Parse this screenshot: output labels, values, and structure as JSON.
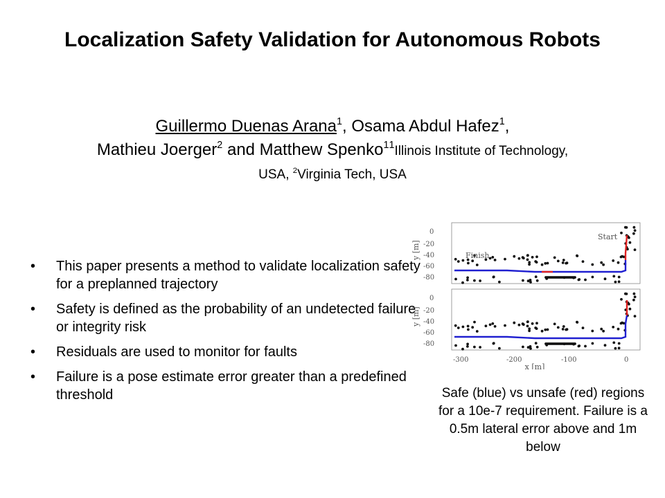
{
  "title": "Localization Safety Validation for Autonomous Robots",
  "authors": {
    "line1": {
      "author1": "Guillermo Duenas Arana",
      "author1_sup": "1",
      "sep1": ", Osama Abdul Hafez",
      "author2_sup": "1",
      "sep2": ","
    },
    "line2": {
      "author3": "Mathieu Joerger",
      "author3_sup": "2",
      "sep3": " and Matthew Spenko",
      "author4_sup": "1",
      "affil1_sup": "1",
      "affil1": "Illinois Institute of Technology,"
    },
    "line3": {
      "affil1_cont": "USA, ",
      "affil2_sup": "2",
      "affil2": "Virginia Tech, USA"
    }
  },
  "bullets": [
    "This paper presents a method to validate localization safety for a preplanned trajectory",
    "Safety is defined as the probability of an undetected failure or integrity risk",
    "Residuals are used to monitor for faults",
    "Failure is a pose estimate error greater than a predefined threshold"
  ],
  "bullet_marker": "•",
  "figure": {
    "top_plot": {
      "label_start": "Start",
      "label_finish": "Finish"
    },
    "ylabel": "y [m]",
    "xlabel": "x [m]",
    "y_ticks": [
      "0",
      "-20",
      "-40",
      "-60",
      "-80"
    ],
    "x_ticks": [
      "-300",
      "-200",
      "-100",
      "0"
    ],
    "colors": {
      "safe": "#1f1fd0",
      "unsafe": "#e02020",
      "landmark": "#111111"
    }
  },
  "caption": "Safe (blue) vs unsafe (red) regions for a 10e-7 requirement. Failure is a 0.5m lateral error above and 1m below"
}
